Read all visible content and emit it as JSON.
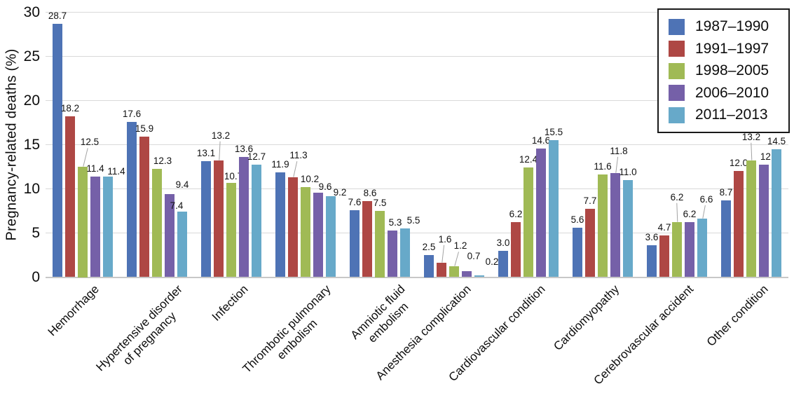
{
  "chart_data": {
    "type": "bar",
    "title": "",
    "xlabel": "",
    "ylabel": "Pregnancy-related deaths (%)",
    "ylim": [
      0,
      30
    ],
    "yticks": [
      0,
      5,
      10,
      15,
      20,
      25,
      30
    ],
    "grid": true,
    "value_labels": true,
    "legend_position": "top-right",
    "legend_border": true,
    "categories": [
      "Hemorrhage",
      "Hypertensive disorder\nof pregnancy",
      "Infection",
      "Thrombotic pulmonary\nembolism",
      "Amniotic fluid\nembolism",
      "Anesthesia complication",
      "Cardiovascular condition",
      "Cardiomyopathy",
      "Cerebrovascular accident",
      "Other condition"
    ],
    "series": [
      {
        "name": "1987–1990",
        "color": "#4E73B5",
        "values": [
          28.7,
          17.6,
          13.1,
          11.9,
          7.6,
          2.5,
          3.0,
          5.6,
          3.6,
          8.7
        ]
      },
      {
        "name": "1991–1997",
        "color": "#AE4744",
        "values": [
          18.2,
          15.9,
          13.2,
          11.3,
          8.6,
          1.6,
          6.2,
          7.7,
          4.7,
          12.0
        ]
      },
      {
        "name": "1998–2005",
        "color": "#A0BA55",
        "values": [
          12.5,
          12.3,
          10.7,
          10.2,
          7.5,
          1.2,
          12.4,
          11.6,
          6.2,
          13.2
        ]
      },
      {
        "name": "2006–2010",
        "color": "#7560A8",
        "values": [
          11.4,
          9.4,
          13.6,
          9.6,
          5.3,
          0.7,
          14.6,
          11.8,
          6.2,
          12.7
        ]
      },
      {
        "name": "2011–2013",
        "color": "#67A9C9",
        "values": [
          11.4,
          7.4,
          12.7,
          9.2,
          5.5,
          0.2,
          15.5,
          11.0,
          6.6,
          14.5
        ]
      }
    ],
    "colors": {
      "gridline": "#d9d9d9",
      "axis_line": "#c8c8c8",
      "leader_line": "#a3a3a3",
      "text": "#0d0d0d",
      "background": "#ffffff"
    },
    "label_layout": {
      "0,2": {
        "dx": 10,
        "dy": -24,
        "leader": true
      },
      "0,4": {
        "dx": 12,
        "dy": 4
      },
      "1,2": {
        "dx": 8,
        "dy": 0
      },
      "1,3": {
        "dx": 18,
        "dy": -2
      },
      "1,4": {
        "dx": -8,
        "dy": 3
      },
      "2,1": {
        "dx": 3,
        "dy": -24,
        "leader": true
      },
      "2,2": {
        "dx": 3,
        "dy": 2
      },
      "3,1": {
        "dx": 8,
        "dy": -20,
        "leader": true
      },
      "3,2": {
        "dx": 6,
        "dy": 0
      },
      "3,3": {
        "dx": 10,
        "dy": 3
      },
      "3,4": {
        "dx": 13,
        "dy": 6
      },
      "4,1": {
        "dx": 4,
        "dy": 0
      },
      "4,3": {
        "dx": 4,
        "dy": 0
      },
      "4,4": {
        "dx": 12,
        "dy": 0
      },
      "5,1": {
        "dx": 5,
        "dy": -22,
        "leader": true
      },
      "5,2": {
        "dx": 9,
        "dy": -18,
        "leader": true
      },
      "5,3": {
        "dx": 10,
        "dy": -10
      },
      "5,4": {
        "dx": 18,
        "dy": -8
      },
      "7,3": {
        "dx": 5,
        "dy": -20,
        "leader": true
      },
      "8,2": {
        "dx": 0,
        "dy": -24,
        "leader": true
      },
      "8,4": {
        "dx": 6,
        "dy": -16,
        "leader": true
      },
      "9,2": {
        "dx": 0,
        "dy": -22,
        "leader": true
      },
      "9,3": {
        "dx": 8,
        "dy": 0
      }
    }
  }
}
